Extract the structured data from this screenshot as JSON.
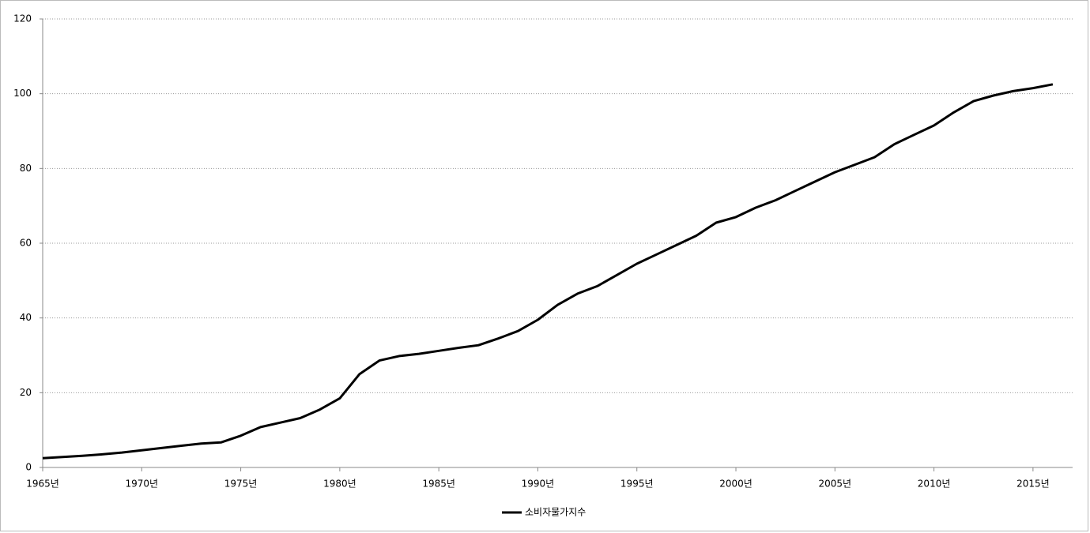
{
  "chart_data": {
    "type": "line",
    "x": [
      1965,
      1966,
      1967,
      1968,
      1969,
      1970,
      1971,
      1972,
      1973,
      1974,
      1975,
      1976,
      1977,
      1978,
      1979,
      1980,
      1981,
      1982,
      1983,
      1984,
      1985,
      1986,
      1987,
      1988,
      1989,
      1990,
      1991,
      1992,
      1993,
      1994,
      1995,
      1996,
      1997,
      1998,
      1999,
      2000,
      2001,
      2002,
      2003,
      2004,
      2005,
      2006,
      2007,
      2008,
      2009,
      2010,
      2011,
      2012,
      2013,
      2014,
      2015,
      2016
    ],
    "series": [
      {
        "name": "소비자물가지수",
        "color": "#000000",
        "values": [
          2.5,
          2.8,
          3.1,
          3.5,
          4.0,
          4.6,
          5.2,
          5.8,
          6.4,
          6.7,
          8.5,
          10.8,
          12.0,
          13.2,
          15.5,
          18.5,
          25.0,
          28.6,
          29.8,
          30.4,
          31.2,
          32.0,
          32.7,
          34.5,
          36.5,
          39.5,
          43.5,
          46.5,
          48.5,
          51.5,
          54.5,
          57.0,
          59.5,
          62.0,
          65.5,
          67.0,
          69.5,
          71.5,
          74.0,
          76.5,
          79.0,
          81.0,
          83.0,
          86.5,
          89.0,
          91.5,
          95.0,
          98.0,
          99.5,
          100.7,
          101.5,
          102.5
        ]
      }
    ],
    "xlim": [
      1965,
      2017
    ],
    "xticks": [
      {
        "value": 1965,
        "label": "1965년"
      },
      {
        "value": 1970,
        "label": "1970년"
      },
      {
        "value": 1975,
        "label": "1975년"
      },
      {
        "value": 1980,
        "label": "1980년"
      },
      {
        "value": 1985,
        "label": "1985년"
      },
      {
        "value": 1990,
        "label": "1990년"
      },
      {
        "value": 1995,
        "label": "1995년"
      },
      {
        "value": 2000,
        "label": "2000년"
      },
      {
        "value": 2005,
        "label": "2005년"
      },
      {
        "value": 2010,
        "label": "2010년"
      },
      {
        "value": 2015,
        "label": "2015년"
      }
    ],
    "ylim": [
      0,
      120
    ],
    "yticks": [
      0,
      20,
      40,
      60,
      80,
      100,
      120
    ],
    "grid": true,
    "legend": "bottom"
  }
}
